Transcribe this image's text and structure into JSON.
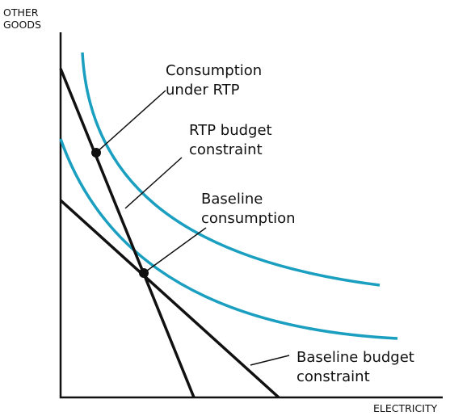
{
  "axes": {
    "y_label": [
      "OTHER",
      "GOODS"
    ],
    "x_label": "ELECTRICITY"
  },
  "annotations": [
    {
      "lines": [
        "Consumption",
        "under RTP"
      ]
    },
    {
      "lines": [
        "RTP budget",
        "constraint"
      ]
    },
    {
      "lines": [
        "Baseline",
        "consumption"
      ]
    },
    {
      "lines": [
        "Baseline budget",
        "constraint"
      ]
    }
  ]
}
